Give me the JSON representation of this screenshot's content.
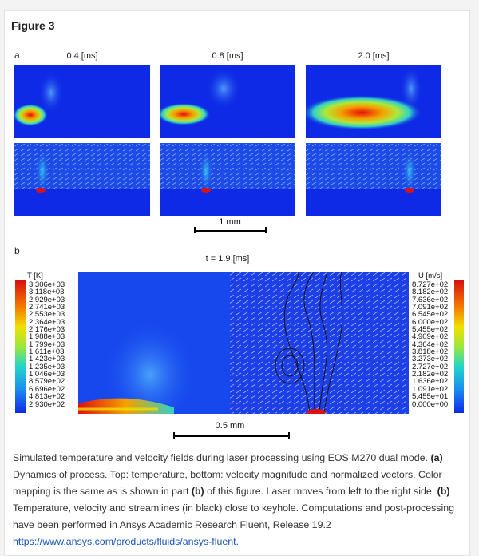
{
  "figure": {
    "title": "Figure 3",
    "panel_a": {
      "label": "a",
      "times": [
        "0.4 [ms]",
        "0.8 [ms]",
        "2.0 [ms]"
      ],
      "scalebar": "1 mm"
    },
    "panel_b": {
      "label": "b",
      "time": "t = 1.9 [ms]",
      "scalebar": "0.5 mm",
      "temp_unit": "T [K]",
      "vel_unit": "U [m/s]",
      "temp_ticks": [
        "3.306e+03",
        "3.118e+03",
        "2.929e+03",
        "2.741e+03",
        "2.553e+03",
        "2.364e+03",
        "2.176e+03",
        "1.988e+03",
        "1.799e+03",
        "1.611e+03",
        "1.423e+03",
        "1.235e+03",
        "1.046e+03",
        "8.579e+02",
        "6.696e+02",
        "4.813e+02",
        "2.930e+02"
      ],
      "vel_ticks": [
        "8.727e+02",
        "8.182e+02",
        "7.636e+02",
        "7.091e+02",
        "6.545e+02",
        "6.000e+02",
        "5.455e+02",
        "4.909e+02",
        "4.364e+02",
        "3.818e+02",
        "3.273e+02",
        "2.727e+02",
        "2.182e+02",
        "1.636e+02",
        "1.091e+02",
        "5.455e+01",
        "0.000e+00"
      ]
    }
  },
  "caption": {
    "text1": "Simulated temperature and velocity fields during laser processing using EOS M270 dual mode. ",
    "b1": "(a)",
    "text2": " Dynamics of process. Top: temperature, bottom: velocity magnitude and normalized vectors. Color mapping is the same as is shown in part ",
    "b2": "(b)",
    "text3": " of this figure. Laser moves from left to the right side. ",
    "b3": "(b)",
    "text4": " Temperature, velocity and streamlines (in black) close to keyhole. Computations and post-processing have been performed in Ansys Academic Research Fluent, Release 19.2",
    "link": "https://www.ansys.com/products/fluids/ansys-fluent."
  },
  "colors": {
    "field_blue": "#0e2ae6",
    "hot_red": "#e01010",
    "link_blue": "#1a55b8"
  }
}
